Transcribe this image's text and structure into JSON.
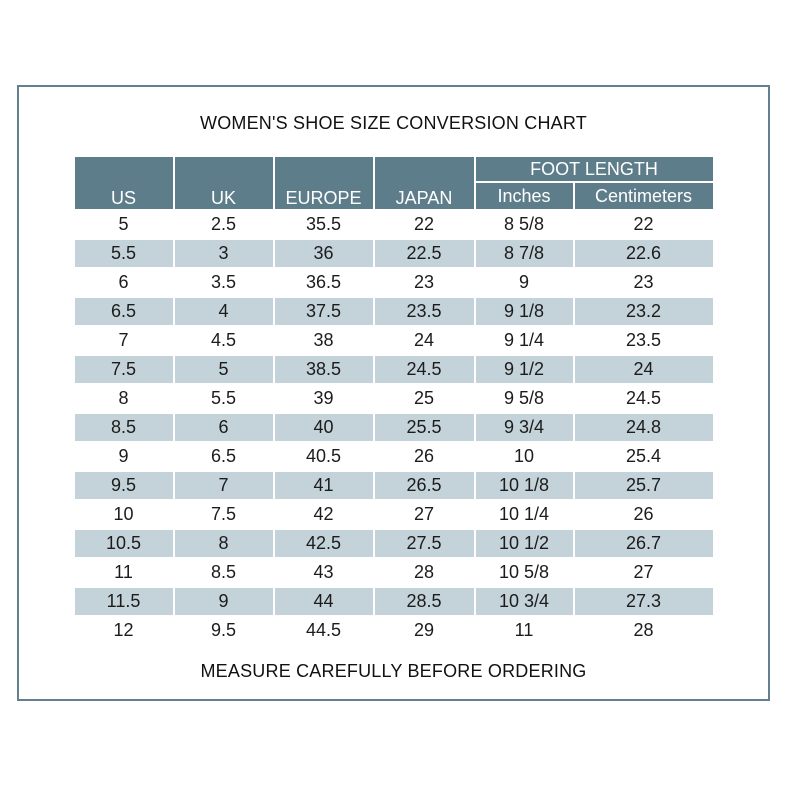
{
  "title": "WOMEN'S SHOE SIZE CONVERSION CHART",
  "footer": "MEASURE CAREFULLY BEFORE ORDERING",
  "colors": {
    "header_bg": "#5e7d8b",
    "header_text": "#ffffff",
    "row_alt_bg": "#c4d2d9",
    "frame_border": "#647f8d",
    "body_text": "#1c1c1c"
  },
  "table": {
    "group_header": "FOOT LENGTH",
    "columns": [
      "US",
      "UK",
      "EUROPE",
      "JAPAN",
      "Inches",
      "Centimeters"
    ],
    "rows": [
      [
        "5",
        "2.5",
        "35.5",
        "22",
        "8 5/8",
        "22"
      ],
      [
        "5.5",
        "3",
        "36",
        "22.5",
        "8 7/8",
        "22.6"
      ],
      [
        "6",
        "3.5",
        "36.5",
        "23",
        "9",
        "23"
      ],
      [
        "6.5",
        "4",
        "37.5",
        "23.5",
        "9 1/8",
        "23.2"
      ],
      [
        "7",
        "4.5",
        "38",
        "24",
        "9 1/4",
        "23.5"
      ],
      [
        "7.5",
        "5",
        "38.5",
        "24.5",
        "9 1/2",
        "24"
      ],
      [
        "8",
        "5.5",
        "39",
        "25",
        "9 5/8",
        "24.5"
      ],
      [
        "8.5",
        "6",
        "40",
        "25.5",
        "9 3/4",
        "24.8"
      ],
      [
        "9",
        "6.5",
        "40.5",
        "26",
        "10",
        "25.4"
      ],
      [
        "9.5",
        "7",
        "41",
        "26.5",
        "10 1/8",
        "25.7"
      ],
      [
        "10",
        "7.5",
        "42",
        "27",
        "10 1/4",
        "26"
      ],
      [
        "10.5",
        "8",
        "42.5",
        "27.5",
        "10 1/2",
        "26.7"
      ],
      [
        "11",
        "8.5",
        "43",
        "28",
        "10 5/8",
        "27"
      ],
      [
        "11.5",
        "9",
        "44",
        "28.5",
        "10 3/4",
        "27.3"
      ],
      [
        "12",
        "9.5",
        "44.5",
        "29",
        "11",
        "28"
      ]
    ]
  }
}
